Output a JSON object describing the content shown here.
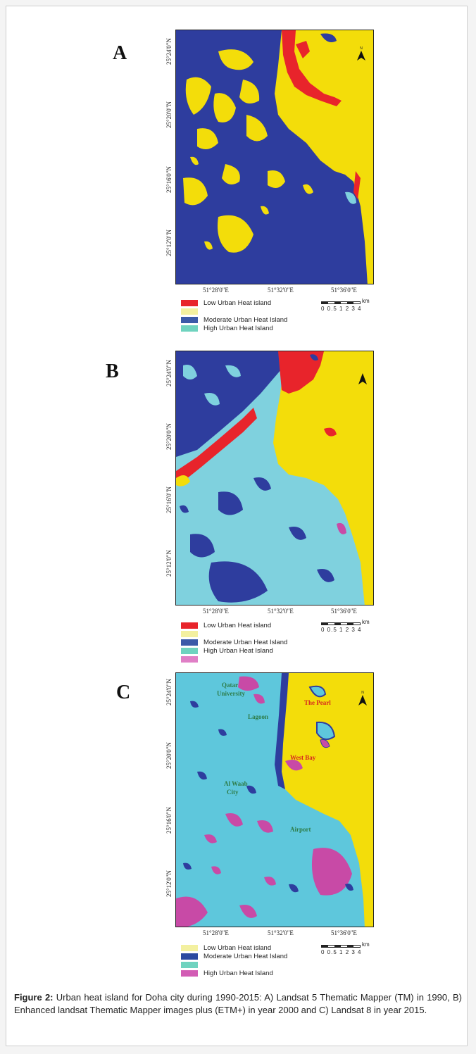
{
  "caption": {
    "label": "Figure 2:",
    "text": "Urban heat island for Doha city during 1990-2015: A) Landsat 5 Thematic Mapper (TM) in 1990, B) Enhanced landsat Thematic Mapper images plus (ETM+) in year 2000 and C) Landsat 8 in year 2015."
  },
  "colors": {
    "low": "#e8242b",
    "low_yellow": "#f3dd0a",
    "moderate": "#2e3d9e",
    "high": "#7fd1de",
    "very_high": "#c84aa6",
    "sea_cyan": "#5ec7dc"
  },
  "latitudes": [
    "25°24'0\"N",
    "25°20'0\"N",
    "25°16'0\"N",
    "25°12'0\"N"
  ],
  "longitudes": [
    "51°28'0\"E",
    "51°32'0\"E",
    "51°36'0\"E"
  ],
  "scale": {
    "unit": "km",
    "ticks": "0 0.5 1   2   3   4"
  },
  "panels": [
    {
      "letter": "A",
      "legend": [
        {
          "label": "Low Urban Heat island",
          "swatch": "#e8242b"
        },
        {
          "label": "",
          "swatch": "#f3f0a0"
        },
        {
          "label": "Moderate Urban Heat Island",
          "swatch": "#3b5aa8"
        },
        {
          "label": "High Urban Heat Island",
          "swatch": "#6fd3bf"
        }
      ]
    },
    {
      "letter": "B",
      "legend": [
        {
          "label": "Low Urban Heat island",
          "swatch": "#e8242b"
        },
        {
          "label": "",
          "swatch": "#f3f0a0"
        },
        {
          "label": "Moderate Urban Heat Island",
          "swatch": "#3b5aa8"
        },
        {
          "label": "High Urban Heat Island",
          "swatch": "#6fd3bf"
        },
        {
          "label": "",
          "swatch": "#e07fc6"
        }
      ]
    },
    {
      "letter": "C",
      "legend": [
        {
          "label": "Low Urban Heat island",
          "swatch": "#f3f0a0"
        },
        {
          "label": "Moderate Urban Heat Island",
          "swatch": "#2c4aa0"
        },
        {
          "label": "",
          "swatch": "#6fd3bf"
        },
        {
          "label": "High Urban Heat Island",
          "swatch": "#d25cb4"
        }
      ],
      "places": [
        {
          "name": "Qatar",
          "color": "#2e7d4a"
        },
        {
          "name": "University",
          "color": "#2e7d4a"
        },
        {
          "name": "The Pearl",
          "color": "#d6261f"
        },
        {
          "name": "Lagoon",
          "color": "#2e7d4a"
        },
        {
          "name": "West Bay",
          "color": "#d6261f"
        },
        {
          "name": "Al Waab",
          "color": "#2e7d4a"
        },
        {
          "name": "City",
          "color": "#2e7d4a"
        },
        {
          "name": "Airport",
          "color": "#2e7d4a"
        }
      ]
    }
  ]
}
